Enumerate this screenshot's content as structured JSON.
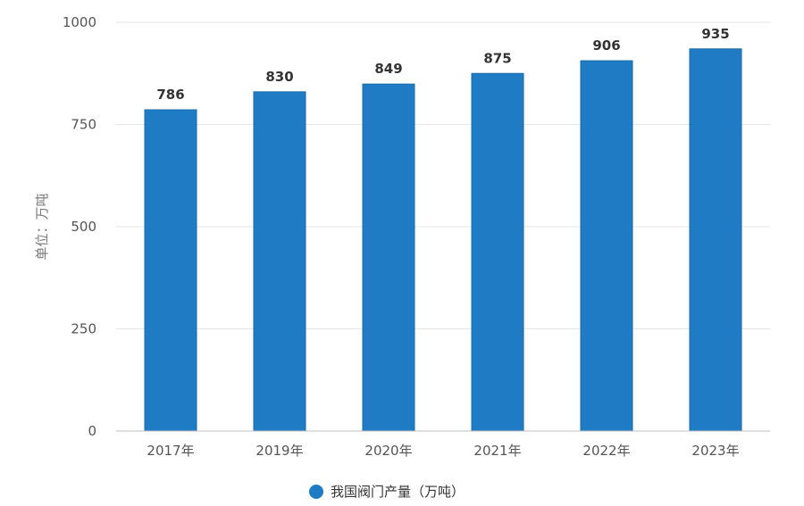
{
  "chart_data": {
    "type": "bar",
    "categories": [
      "2017年",
      "2019年",
      "2020年",
      "2021年",
      "2022年",
      "2023年"
    ],
    "series": [
      {
        "name": "我国阀门产量（万吨）",
        "values": [
          786,
          830,
          849,
          875,
          906,
          935
        ]
      }
    ],
    "data_labels": [
      "786",
      "830",
      "849",
      "875",
      "906",
      "935"
    ],
    "ylabel": "单位：万吨",
    "ylim": [
      0,
      1000
    ],
    "yticks": [
      "0",
      "250",
      "500",
      "750",
      "1000"
    ],
    "ytick_values": [
      0,
      250,
      500,
      750,
      1000
    ],
    "grid": true,
    "legend": "bottom-center",
    "colors": {
      "bar": "#1f7cc4",
      "bar_edge": "#1a6aa8",
      "grid": "#e6e6e6",
      "axis": "#bfbfbf"
    }
  }
}
